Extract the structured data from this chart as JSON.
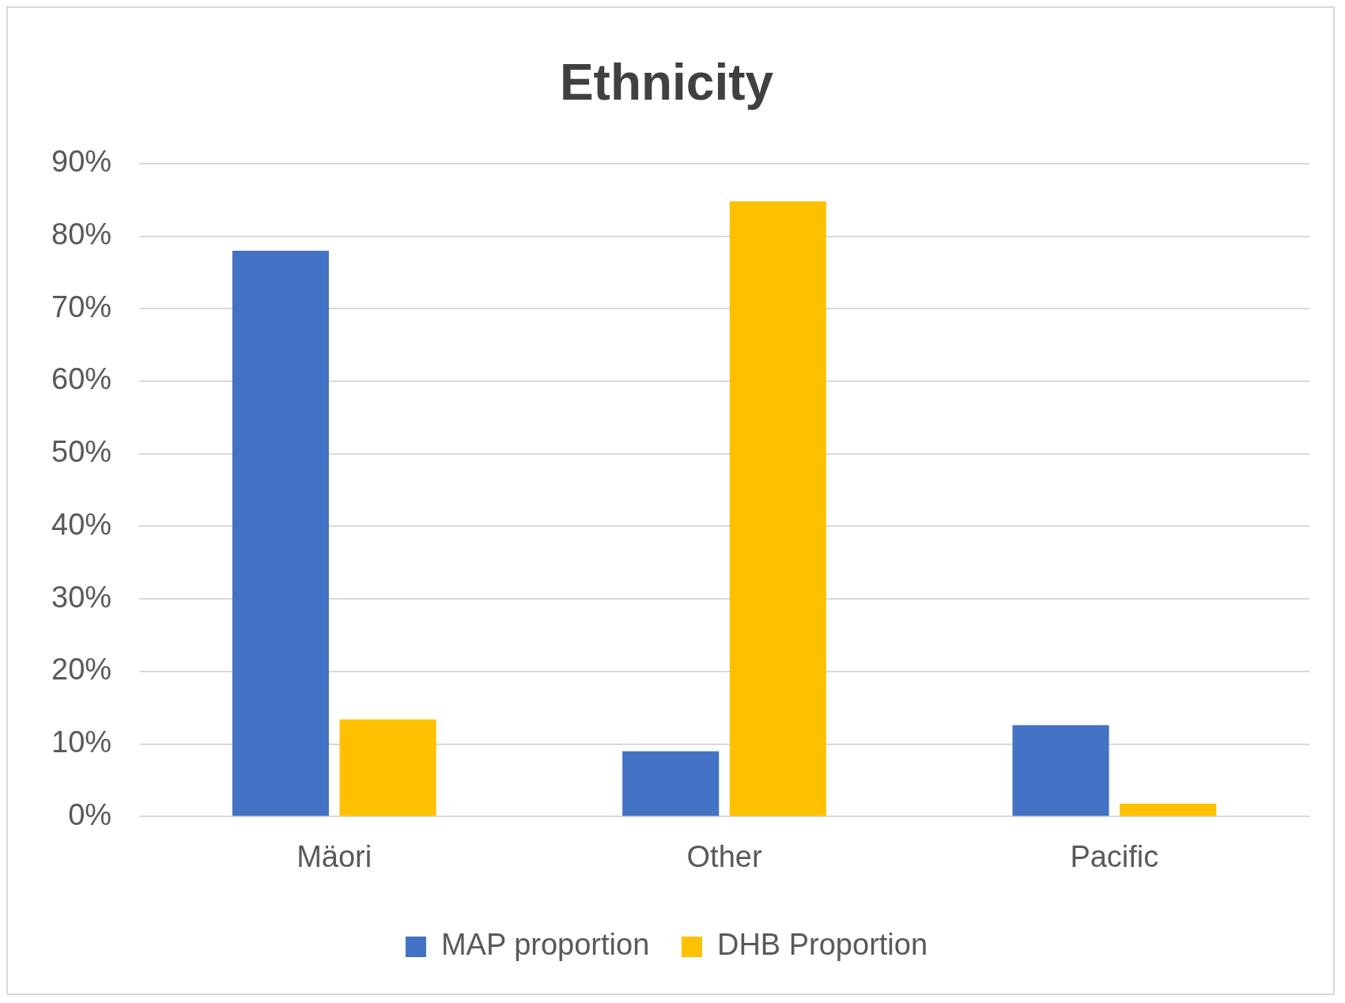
{
  "chart_data": {
    "type": "bar",
    "title": "Ethnicity",
    "categories": [
      "Mäori",
      "Other",
      "Pacific"
    ],
    "series": [
      {
        "name": "MAP proportion",
        "color": "#4472c4",
        "values": [
          78,
          9,
          12.6
        ]
      },
      {
        "name": "DHB Proportion",
        "color": "#ffc000",
        "values": [
          13.4,
          84.8,
          1.8
        ]
      }
    ],
    "ylim": [
      0,
      90
    ],
    "yticks": [
      {
        "value": 0,
        "label": "0%"
      },
      {
        "value": 10,
        "label": "10%"
      },
      {
        "value": 20,
        "label": "20%"
      },
      {
        "value": 30,
        "label": "30%"
      },
      {
        "value": 40,
        "label": "40%"
      },
      {
        "value": 50,
        "label": "50%"
      },
      {
        "value": 60,
        "label": "60%"
      },
      {
        "value": 70,
        "label": "70%"
      },
      {
        "value": 80,
        "label": "80%"
      },
      {
        "value": 90,
        "label": "90%"
      }
    ],
    "grid": "y",
    "legend": "bottom"
  }
}
